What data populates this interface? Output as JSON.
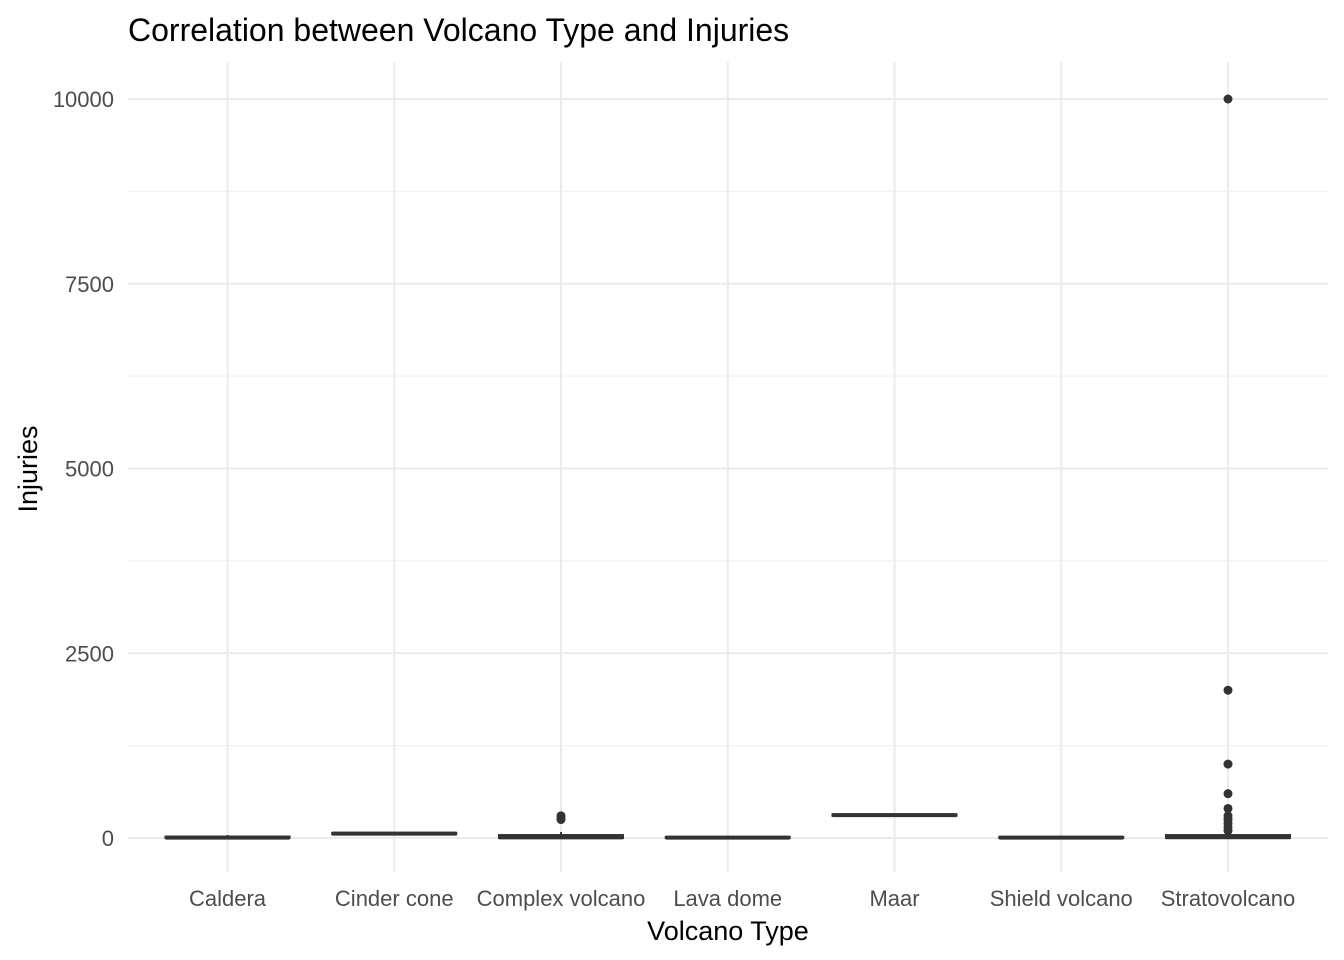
{
  "chart_data": {
    "type": "boxplot",
    "title": "Correlation between Volcano Type and Injuries",
    "xlabel": "Volcano Type",
    "ylabel": "Injuries",
    "ylim": [
      -500,
      10500
    ],
    "yticks": [
      0,
      2500,
      5000,
      7500,
      10000
    ],
    "ytick_labels": [
      "0",
      "2500",
      "5000",
      "7500",
      "10000"
    ],
    "grid": true,
    "categories": [
      "Caldera",
      "Cinder cone",
      "Complex volcano",
      "Lava dome",
      "Maar",
      "Shield volcano",
      "Stratovolcano"
    ],
    "boxes": [
      {
        "category": "Caldera",
        "q1": 0,
        "median": 5,
        "q3": 20,
        "whisker_low": 0,
        "whisker_high": 40,
        "outliers": []
      },
      {
        "category": "Cinder cone",
        "q1": 50,
        "median": 60,
        "q3": 70,
        "whisker_low": 50,
        "whisker_high": 70,
        "outliers": []
      },
      {
        "category": "Complex volcano",
        "q1": 0,
        "median": 8,
        "q3": 40,
        "whisker_low": 0,
        "whisker_high": 80,
        "outliers": [
          250,
          280,
          300
        ]
      },
      {
        "category": "Lava dome",
        "q1": 0,
        "median": 5,
        "q3": 15,
        "whisker_low": 0,
        "whisker_high": 30,
        "outliers": []
      },
      {
        "category": "Maar",
        "q1": 300,
        "median": 310,
        "q3": 320,
        "whisker_low": 300,
        "whisker_high": 320,
        "outliers": []
      },
      {
        "category": "Shield volcano",
        "q1": 0,
        "median": 5,
        "q3": 15,
        "whisker_low": 0,
        "whisker_high": 30,
        "outliers": []
      },
      {
        "category": "Stratovolcano",
        "q1": 0,
        "median": 10,
        "q3": 40,
        "whisker_low": 0,
        "whisker_high": 80,
        "outliers": [
          100,
          150,
          200,
          250,
          300,
          400,
          600,
          1000,
          2000,
          10000
        ]
      }
    ],
    "colors": {
      "box": "#333333",
      "fill": "#ffffff",
      "outlier": "#333333",
      "grid": "#ebebeb"
    }
  }
}
